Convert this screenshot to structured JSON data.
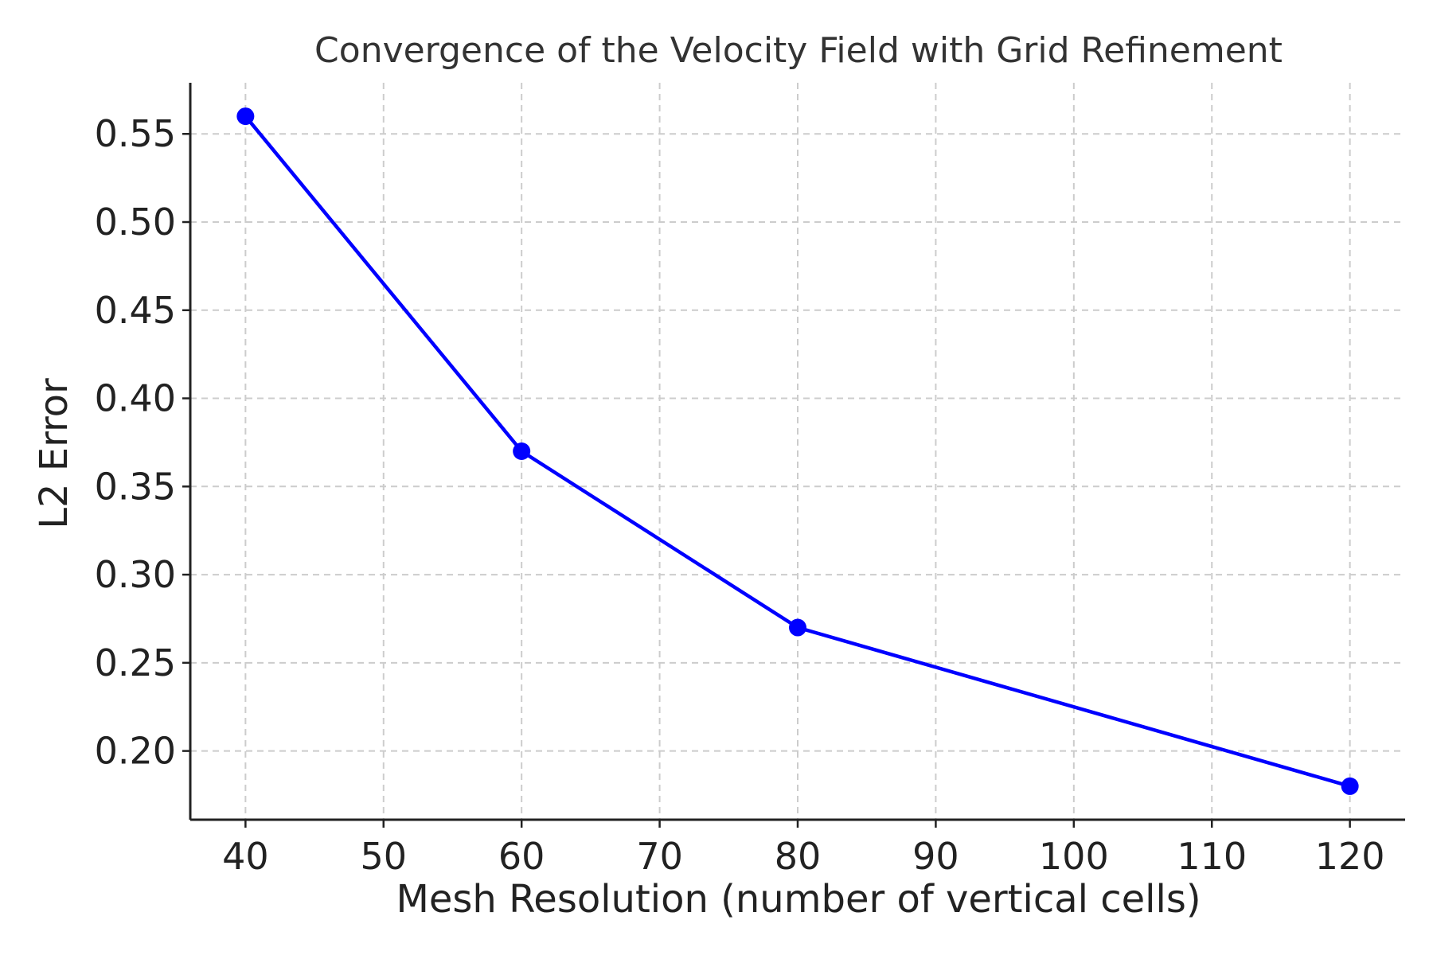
{
  "chart_data": {
    "type": "line",
    "title": "Convergence of the Velocity Field with Grid Refinement",
    "xlabel": "Mesh Resolution (number of vertical cells)",
    "ylabel": "L2 Error",
    "x": [
      40,
      60,
      80,
      120
    ],
    "series": [
      {
        "values": [
          0.56,
          0.37,
          0.27,
          0.18
        ],
        "color": "#0000ff",
        "marker": "circle"
      }
    ],
    "xlim": [
      36,
      124
    ],
    "ylim": [
      0.161,
      0.579
    ],
    "xticks": [
      40,
      50,
      60,
      70,
      80,
      90,
      100,
      110,
      120
    ],
    "xtick_labels": [
      "40",
      "50",
      "60",
      "70",
      "80",
      "90",
      "100",
      "110",
      "120"
    ],
    "yticks": [
      0.2,
      0.25,
      0.3,
      0.35,
      0.4,
      0.45,
      0.5,
      0.55
    ],
    "ytick_labels": [
      "0.20",
      "0.25",
      "0.30",
      "0.35",
      "0.40",
      "0.45",
      "0.50",
      "0.55"
    ],
    "grid": true,
    "legend": "none"
  }
}
